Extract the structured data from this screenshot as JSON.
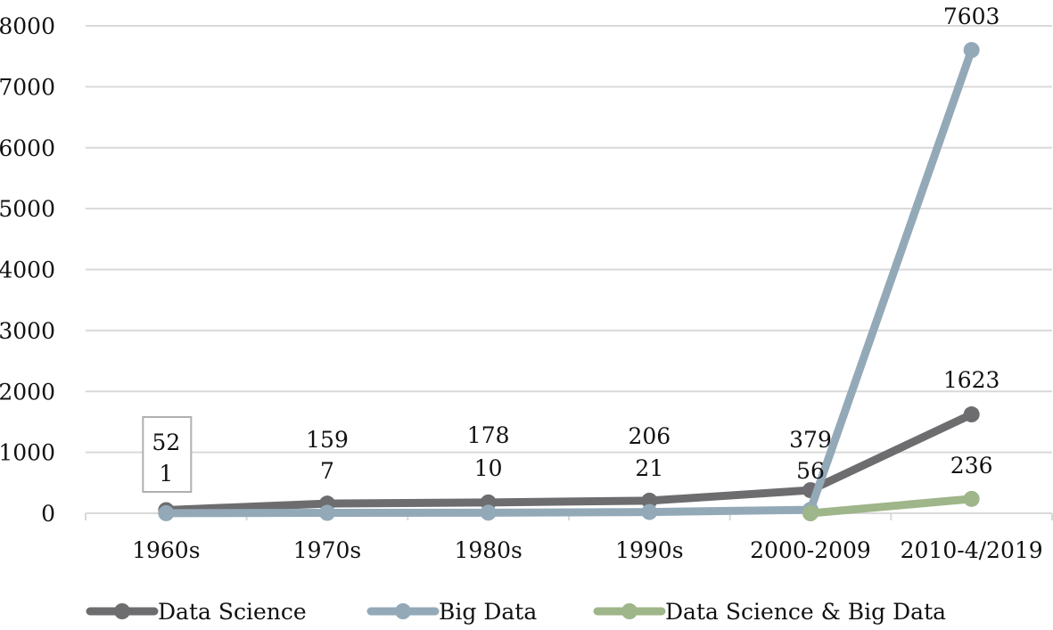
{
  "chart_data": {
    "type": "line",
    "title": "",
    "xlabel": "",
    "ylabel": "",
    "categories": [
      "1960s",
      "1970s",
      "1980s",
      "1990s",
      "2000-2009",
      "2010-4/2019"
    ],
    "ylim": [
      0,
      8000
    ],
    "yticks": [
      0,
      1000,
      2000,
      3000,
      4000,
      5000,
      6000,
      7000,
      8000
    ],
    "grid": "horizontal",
    "legend_position": "bottom",
    "series": [
      {
        "name": "Data Science",
        "color": "#6d6d6f",
        "values": [
          52,
          159,
          178,
          206,
          379,
          1623
        ],
        "labels": [
          "52",
          "159",
          "178",
          "206",
          "379",
          "1623"
        ]
      },
      {
        "name": "Big Data",
        "color": "#93a9b8",
        "values": [
          1,
          7,
          10,
          21,
          56,
          7603
        ],
        "labels": [
          "1",
          "7",
          "10",
          "21",
          "56",
          "7603"
        ]
      },
      {
        "name": "Data Science & Big Data",
        "color": "#9fb58a",
        "values": [
          null,
          null,
          null,
          null,
          0,
          236
        ],
        "labels": [
          null,
          null,
          null,
          null,
          null,
          "236"
        ]
      }
    ]
  }
}
